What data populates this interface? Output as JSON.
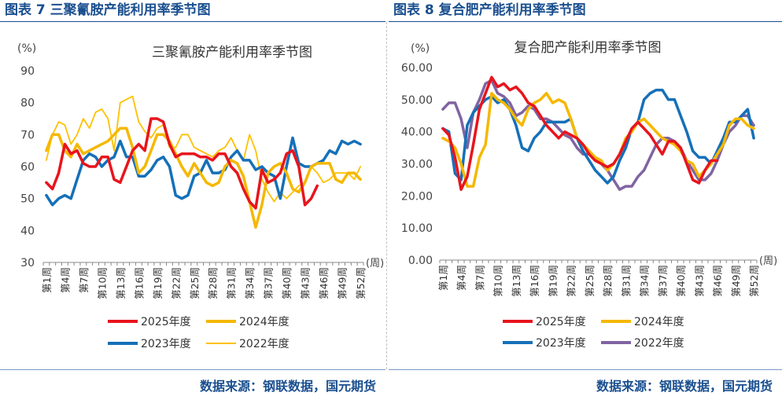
{
  "left": {
    "fig_title": "图表 7 三聚氰胺产能利用率季节图",
    "source": "数据来源：钢联数据，国元期货",
    "chart_data": {
      "type": "line",
      "title": "三聚氰胺产能利用率季节图",
      "unit_label": "(%)",
      "x_unit_label": "(周)",
      "ylim": [
        30,
        90
      ],
      "yticks": [
        "30",
        "40",
        "50",
        "60",
        "70",
        "80",
        "90"
      ],
      "week_count": 52,
      "xtick_labels": [
        "第1周",
        "第4周",
        "第7周",
        "第10周",
        "第13周",
        "第16周",
        "第19周",
        "第22周",
        "第25周",
        "第28周",
        "第31周",
        "第34周",
        "第37周",
        "第40周",
        "第43周",
        "第46周",
        "第49周",
        "第52周"
      ],
      "series": [
        {
          "name": "2025年度",
          "color": "#e8141c",
          "width": 3.5,
          "values": [
            55,
            53,
            58,
            67,
            64,
            65,
            61,
            60,
            60,
            63,
            63,
            56,
            55,
            60,
            65,
            67,
            65,
            75,
            75,
            74,
            67,
            63,
            64,
            64,
            64,
            63,
            63,
            62,
            64,
            64,
            60,
            58,
            53,
            49,
            47,
            59,
            55,
            56,
            58,
            64,
            65,
            60,
            48,
            50,
            54,
            null,
            null,
            null,
            null,
            null,
            null,
            null
          ]
        },
        {
          "name": "2024年度",
          "color": "#f5b800",
          "width": 3.5,
          "values": [
            65,
            70,
            70,
            65,
            63,
            67,
            64,
            65,
            66,
            67,
            68,
            70,
            72,
            72,
            66,
            58,
            60,
            65,
            70,
            70,
            68,
            64,
            60,
            57,
            61,
            58,
            55,
            54,
            55,
            60,
            62,
            61,
            57,
            49,
            41,
            48,
            58,
            60,
            61,
            58,
            53,
            52,
            55,
            60,
            61,
            61,
            61,
            56,
            55,
            58,
            58,
            56
          ]
        },
        {
          "name": "2023年度",
          "color": "#1570b8",
          "width": 3.5,
          "values": [
            51,
            48,
            50,
            51,
            50,
            56,
            62,
            64,
            63,
            60,
            62,
            63,
            68,
            63,
            63,
            57,
            57,
            59,
            62,
            63,
            60,
            51,
            50,
            51,
            57,
            58,
            62,
            58,
            58,
            59,
            63,
            65,
            62,
            62,
            59,
            60,
            58,
            57,
            50,
            60,
            69,
            61,
            60,
            60,
            61,
            62,
            65,
            64,
            68,
            67,
            68,
            67
          ]
        },
        {
          "name": "2022年度",
          "color": "#ffc000",
          "width": 1.8,
          "values": [
            62,
            70,
            74,
            73,
            67,
            70,
            75,
            72,
            77,
            78,
            75,
            65,
            80,
            81,
            82,
            74,
            71,
            69,
            72,
            73,
            66,
            66,
            70,
            70,
            66,
            65,
            64,
            63,
            65,
            66,
            69,
            65,
            62,
            70,
            65,
            56,
            52,
            49,
            52,
            50,
            52,
            54,
            55,
            60,
            58,
            55,
            56,
            58,
            58,
            58,
            56,
            60
          ]
        }
      ]
    }
  },
  "right": {
    "fig_title": "图表 8 复合肥产能利用率季节图",
    "source": "数据来源：钢联数据，国元期货",
    "chart_data": {
      "type": "line",
      "title": "复合肥产能利用率季节图",
      "unit_label": "(%)",
      "x_unit_label": "(周)",
      "ylim": [
        0,
        60
      ],
      "yticks": [
        "0.00",
        "10.00",
        "20.00",
        "30.00",
        "40.00",
        "50.00",
        "60.00"
      ],
      "week_count": 52,
      "xtick_labels": [
        "第1周",
        "第4周",
        "第7周",
        "第10周",
        "第13周",
        "第16周",
        "第19周",
        "第22周",
        "第25周",
        "第28周",
        "第31周",
        "第34周",
        "第37周",
        "第40周",
        "第43周",
        "第46周",
        "第49周",
        "第52周"
      ],
      "series": [
        {
          "name": "2025年度",
          "color": "#e8141c",
          "width": 3.5,
          "values": [
            41,
            39,
            32,
            22,
            26,
            36,
            47,
            52,
            57,
            54,
            55,
            53,
            54,
            52,
            49,
            48,
            45,
            42,
            40,
            38,
            40,
            39,
            38,
            36,
            33,
            31,
            30,
            29,
            30,
            33,
            37,
            41,
            43,
            41,
            39,
            36,
            33,
            37,
            37,
            35,
            30,
            25,
            24,
            28,
            31,
            31,
            null,
            null,
            null,
            null,
            null,
            null
          ]
        },
        {
          "name": "2024年度",
          "color": "#f5b800",
          "width": 3.5,
          "values": [
            38,
            37,
            35,
            30,
            23,
            23,
            32,
            36,
            52,
            50,
            49,
            47,
            44,
            42,
            47,
            49,
            50,
            52,
            49,
            50,
            49,
            44,
            38,
            36,
            34,
            32,
            31,
            28,
            30,
            33,
            38,
            40,
            43,
            44,
            42,
            40,
            38,
            37,
            36,
            34,
            31,
            30,
            26,
            28,
            30,
            33,
            36,
            42,
            44,
            44,
            42,
            41
          ]
        },
        {
          "name": "2023年度",
          "color": "#1570b8",
          "width": 3.5,
          "values": [
            41,
            40,
            27,
            25,
            42,
            46,
            48,
            50,
            51,
            49,
            50,
            47,
            42,
            35,
            34,
            38,
            40,
            43,
            43,
            43,
            43,
            44,
            38,
            34,
            31,
            28,
            26,
            24,
            26,
            31,
            35,
            41,
            43,
            50,
            52,
            53,
            53,
            50,
            50,
            45,
            40,
            34,
            32,
            32,
            30,
            34,
            38,
            43,
            43,
            45,
            47,
            38
          ]
        },
        {
          "name": "2022年度",
          "color": "#8064a2",
          "width": 3.5,
          "values": [
            47,
            49,
            49,
            44,
            35,
            46,
            50,
            55,
            56,
            52,
            51,
            49,
            45,
            46,
            48,
            47,
            44,
            44,
            43,
            41,
            39,
            38,
            35,
            33,
            33,
            32,
            30,
            28,
            25,
            22,
            23,
            23,
            26,
            28,
            32,
            36,
            38,
            38,
            37,
            35,
            31,
            28,
            25,
            25,
            27,
            31,
            36,
            40,
            42,
            45,
            45,
            42
          ]
        }
      ]
    }
  }
}
